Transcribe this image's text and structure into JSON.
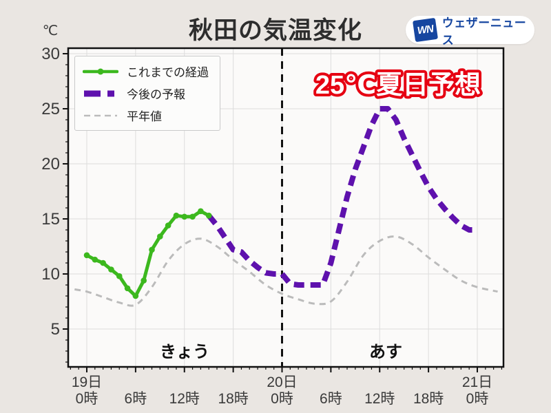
{
  "page": {
    "title": "秋田の気温変化",
    "unit_label": "℃"
  },
  "logo": {
    "mark": "WN",
    "text": "ウェザーニュース"
  },
  "annotations": {
    "forecast_highlight": "25℃夏日予想",
    "today_label": "きょう",
    "tomorrow_label": "あす"
  },
  "legend": {
    "items": [
      {
        "label": "これまでの経過"
      },
      {
        "label": "今後の予報"
      },
      {
        "label": "平年値"
      }
    ]
  },
  "theme": {
    "page_background": "#EAE6E2",
    "plot_background": "#FBFAF9",
    "grid_color": "#DCDCDC",
    "axis_color": "#111111",
    "label_color": "#3a3a3a",
    "highlight_red": "#E60012",
    "logo_blue": "#1646A0"
  },
  "chart_data": {
    "type": "line",
    "title": "秋田の気温変化",
    "ylabel": "℃",
    "ylim": [
      1.5,
      30.5
    ],
    "y_ticks": [
      30,
      25,
      20,
      15,
      10,
      5
    ],
    "x_ticks": [
      {
        "hour": 0,
        "day": "19日",
        "time": "0時"
      },
      {
        "hour": 6,
        "day": "",
        "time": "6時"
      },
      {
        "hour": 12,
        "day": "",
        "time": "12時"
      },
      {
        "hour": 18,
        "day": "",
        "time": "18時"
      },
      {
        "hour": 24,
        "day": "20日",
        "time": "0時"
      },
      {
        "hour": 30,
        "day": "",
        "time": "6時"
      },
      {
        "hour": 36,
        "day": "",
        "time": "12時"
      },
      {
        "hour": 42,
        "day": "",
        "time": "18時"
      },
      {
        "hour": 48,
        "day": "21日",
        "time": "0時"
      }
    ],
    "day_divider_hour": 24,
    "grid": true,
    "legend_position": "upper-left",
    "series": [
      {
        "name": "これまでの経過",
        "kind": "observed",
        "color": "#3CB81E",
        "line": "solid",
        "marker": "circle",
        "hours": [
          0,
          1,
          2,
          3,
          4,
          5,
          6,
          7,
          8,
          9,
          10,
          11,
          12,
          13,
          14,
          15
        ],
        "values": [
          11.7,
          11.3,
          11.0,
          10.4,
          9.8,
          8.7,
          8.0,
          9.4,
          12.2,
          13.4,
          14.4,
          15.3,
          15.2,
          15.2,
          15.7,
          15.3
        ]
      },
      {
        "name": "今後の予報",
        "kind": "forecast",
        "color": "#5E11AD",
        "line": "dashed-thick",
        "marker": "none",
        "hours": [
          15,
          16,
          17,
          18,
          19,
          20,
          21,
          22,
          23,
          24,
          25,
          26,
          27,
          28,
          29,
          30,
          31,
          32,
          33,
          34,
          35,
          36,
          37,
          38,
          39,
          40,
          41,
          42,
          43,
          44,
          45,
          46,
          47,
          48
        ],
        "values": [
          15.3,
          14.4,
          13.3,
          12.2,
          12.0,
          11.2,
          10.6,
          10.1,
          10.0,
          10.0,
          9.1,
          9.0,
          9.0,
          9.0,
          9.0,
          11.0,
          14.0,
          17.0,
          19.5,
          21.5,
          23.5,
          25.0,
          25.0,
          24.0,
          22.3,
          20.8,
          19.3,
          17.9,
          16.8,
          15.9,
          15.1,
          14.4,
          14.0,
          14.0
        ]
      },
      {
        "name": "平年値",
        "kind": "normal",
        "color": "#BBBBBB",
        "line": "dashed-thin",
        "marker": "none",
        "hours": [
          -1.5,
          0,
          2,
          4,
          6,
          8,
          10,
          12,
          14,
          16,
          18,
          20,
          22,
          24,
          26,
          28,
          30,
          32,
          34,
          36,
          38,
          40,
          42,
          44,
          46,
          48,
          50.5
        ],
        "values": [
          8.6,
          8.4,
          7.9,
          7.4,
          7.2,
          8.8,
          11.2,
          12.7,
          13.2,
          12.5,
          11.3,
          10.2,
          9.0,
          8.2,
          7.7,
          7.3,
          7.5,
          9.3,
          11.7,
          13.0,
          13.4,
          12.7,
          11.5,
          10.4,
          9.4,
          8.8,
          8.4
        ]
      }
    ]
  }
}
